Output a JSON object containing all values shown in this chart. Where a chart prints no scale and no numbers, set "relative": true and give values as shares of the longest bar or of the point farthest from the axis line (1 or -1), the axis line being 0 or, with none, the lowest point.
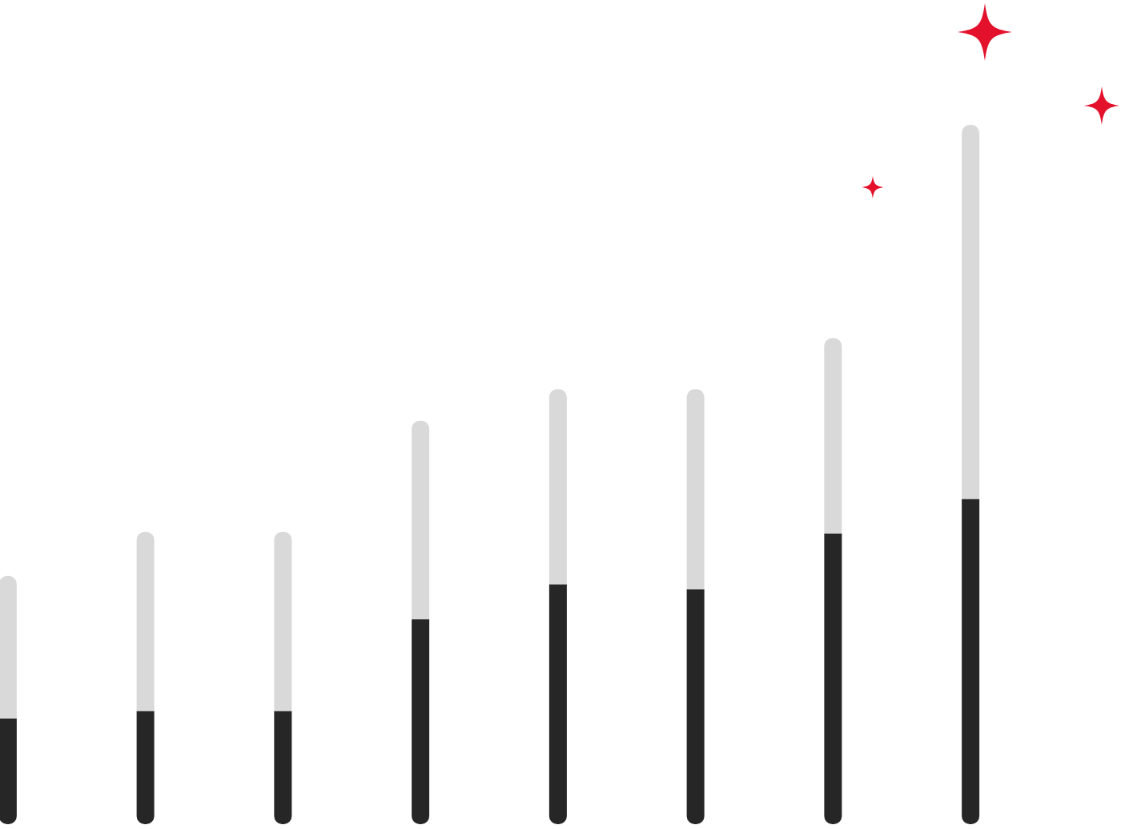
{
  "chart_data": {
    "type": "bar",
    "relative": true,
    "stacked": true,
    "categories": [
      null,
      null,
      null,
      null,
      null,
      null,
      null,
      null
    ],
    "series": [
      {
        "color": "#262626",
        "values": [
          0.151,
          0.162,
          0.162,
          0.293,
          0.343,
          0.336,
          0.416,
          0.465
        ]
      },
      {
        "color": "#d9d9d9",
        "values": [
          0.204,
          0.256,
          0.256,
          0.284,
          0.279,
          0.286,
          0.279,
          0.535
        ]
      }
    ],
    "tick_labels": false
  }
}
